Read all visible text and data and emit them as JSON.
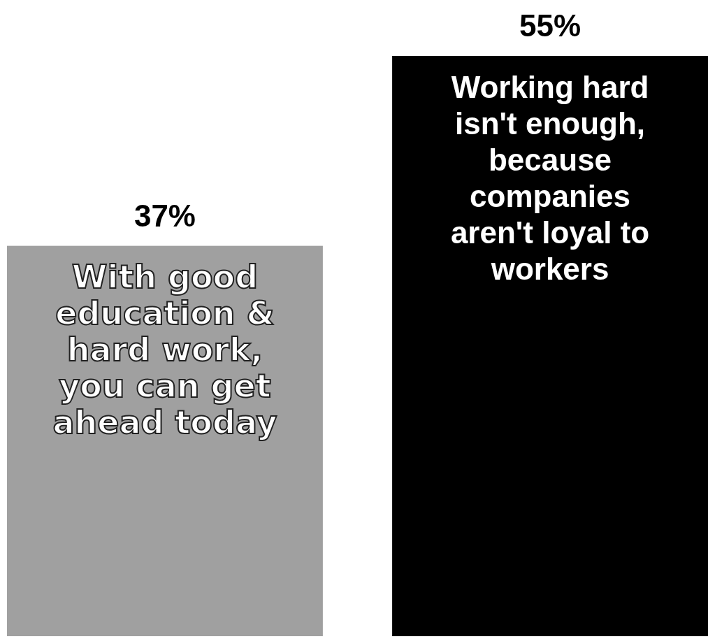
{
  "chart_data": {
    "type": "bar",
    "categories": [
      "With good education & hard work, you can get ahead today",
      "Working hard isn't enough, because companies aren't loyal to workers"
    ],
    "values": [
      37,
      55
    ],
    "colors": [
      "#a0a0a0",
      "#000000"
    ],
    "value_labels": [
      "37%",
      "55%"
    ]
  }
}
